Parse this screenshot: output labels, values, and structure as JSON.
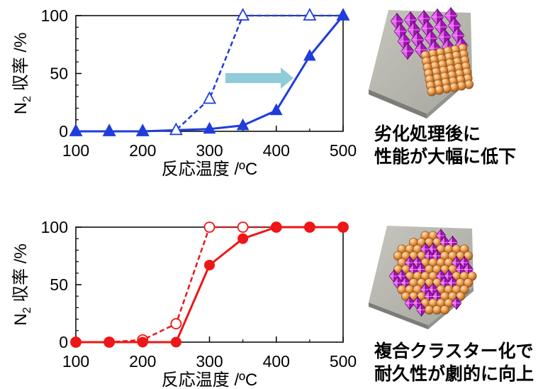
{
  "chart_data": [
    {
      "type": "line",
      "xlabel": "反応温度 /ºC",
      "ylabel": {
        "prefix": "N",
        "sub": "2",
        "suffix": " 収率 /%"
      },
      "xticks": [
        "100",
        "200",
        "300",
        "400",
        "500"
      ],
      "yticks": [
        "0",
        "50",
        "100"
      ],
      "xlim": [
        100,
        500
      ],
      "ylim": [
        0,
        100
      ],
      "grid": false,
      "color": "#1f3ddb",
      "arrow_color": "#8fcbd9",
      "series": [
        {
          "line": "dashed",
          "marker": "open-triangle",
          "x": [
            100,
            150,
            200,
            250,
            300,
            350,
            450,
            500
          ],
          "values": [
            0,
            0,
            0,
            1,
            28,
            100,
            100,
            100
          ]
        },
        {
          "line": "solid",
          "marker": "filled-triangle",
          "x": [
            100,
            150,
            200,
            300,
            350,
            400,
            450,
            500
          ],
          "values": [
            0,
            0,
            0,
            2,
            5,
            18,
            65,
            100
          ]
        }
      ]
    },
    {
      "type": "line",
      "xlabel": "反応温度 /ºC",
      "ylabel": {
        "prefix": "N",
        "sub": "2",
        "suffix": " 収率 /%"
      },
      "xticks": [
        "100",
        "200",
        "300",
        "400",
        "500"
      ],
      "yticks": [
        "0",
        "50",
        "100"
      ],
      "xlim": [
        100,
        500
      ],
      "ylim": [
        0,
        100
      ],
      "grid": false,
      "color": "#ee1616",
      "series": [
        {
          "line": "dashed",
          "marker": "open-circle",
          "x": [
            100,
            150,
            200,
            250,
            300,
            350,
            400,
            450,
            500
          ],
          "values": [
            0,
            0,
            2,
            16,
            100,
            100,
            100,
            100,
            100
          ]
        },
        {
          "line": "solid",
          "marker": "filled-circle",
          "x": [
            100,
            150,
            200,
            250,
            300,
            350,
            400,
            450,
            500
          ],
          "values": [
            0,
            0,
            0,
            0,
            67,
            90,
            100,
            100,
            100
          ]
        }
      ]
    }
  ],
  "captions": {
    "top": [
      "劣化処理後に",
      "性能が大幅に低下"
    ],
    "bottom": [
      "複合クラスター化で",
      "耐久性が劇的に向上"
    ]
  }
}
